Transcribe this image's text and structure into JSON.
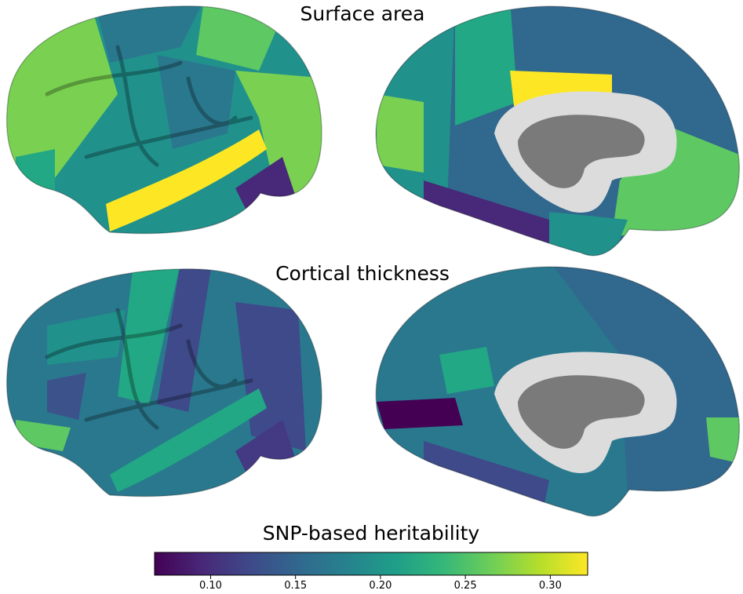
{
  "chart_data": {
    "type": "colorbar",
    "title": "SNP-based heritability",
    "colormap": "viridis",
    "xlim": [
      0.067,
      0.322
    ],
    "xticks": [
      {
        "value": 0.1,
        "label": "0.10"
      },
      0.15,
      {
        "value": 0.2,
        "label": "0.20"
      },
      0.25,
      {
        "value": 0.3,
        "label": "0.30"
      }
    ]
  },
  "panels": [
    {
      "title": "Surface area"
    },
    {
      "title": "Cortical thickness"
    }
  ]
}
